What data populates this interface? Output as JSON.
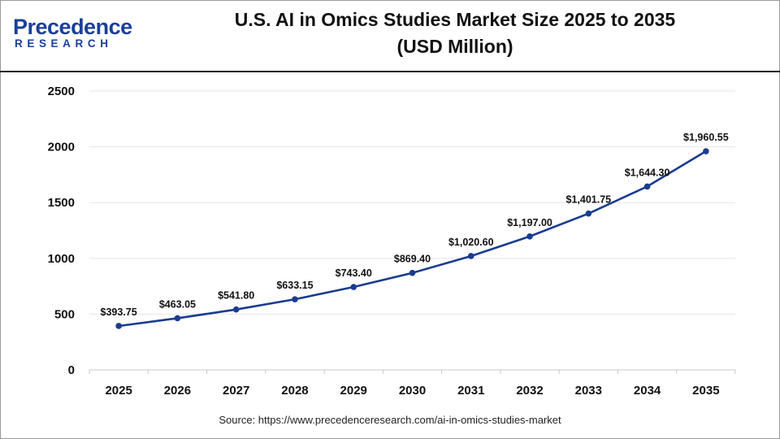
{
  "header": {
    "logo_top": "Precedence",
    "logo_bottom": "RESEARCH",
    "title_line1": "U.S. AI in Omics Studies Market Size 2025 to 2035",
    "title_line2": "(USD Million)"
  },
  "colors": {
    "line": "#1a3c8f",
    "brand": "#1b3f99",
    "grid": "#e6e6e6"
  },
  "chart_data": {
    "type": "line",
    "title": "U.S. AI in Omics Studies Market Size 2025 to 2035 (USD Million)",
    "categories": [
      "2025",
      "2026",
      "2027",
      "2028",
      "2029",
      "2030",
      "2031",
      "2032",
      "2033",
      "2034",
      "2035"
    ],
    "values": [
      393.75,
      463.05,
      541.8,
      633.15,
      743.4,
      869.4,
      1020.6,
      1197.0,
      1401.75,
      1644.3,
      1960.55
    ],
    "data_labels": [
      "$393.75",
      "$463.05",
      "$541.80",
      "$633.15",
      "$743.40",
      "$869.40",
      "$1,020.60",
      "$1,197.00",
      "$1,401.75",
      "$1,644.30",
      "$1,960.55"
    ],
    "ylim": [
      0,
      2500
    ],
    "yticks": [
      0,
      500,
      1000,
      1500,
      2000,
      2500
    ],
    "grid": true
  },
  "source": "Source: https://www.precedenceresearch.com/ai-in-omics-studies-market"
}
